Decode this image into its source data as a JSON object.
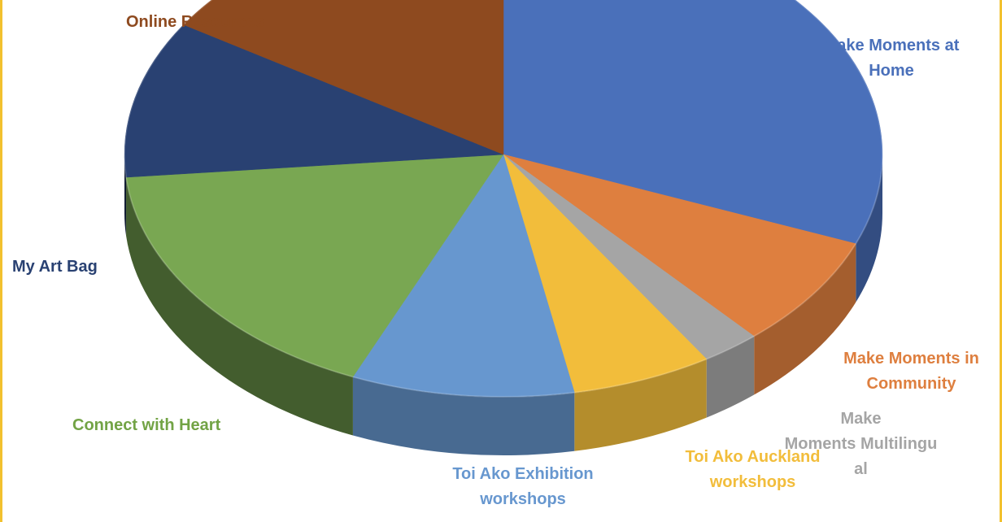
{
  "chart_data": {
    "type": "pie",
    "variant": "3d",
    "title": "",
    "slices": [
      {
        "label": "Make Moments at\nHome",
        "value": 31.0,
        "color": "#4a70ba",
        "label_color": "#4a70ba"
      },
      {
        "label": "Make Moments in\nCommunity",
        "value": 7.5,
        "color": "#de7f3f",
        "label_color": "#de7f3f"
      },
      {
        "label": "Make\nMoments Multilingu\nal",
        "value": 2.5,
        "color": "#a5a5a5",
        "label_color": "#a5a5a5"
      },
      {
        "label": "Toi Ako Auckland\nworkshops",
        "value": 6.0,
        "color": "#f2bd3b",
        "label_color": "#f2bd3b"
      },
      {
        "label": "Toi Ako Exhibition\nworkshops",
        "value": 9.5,
        "color": "#6797cf",
        "label_color": "#6797cf"
      },
      {
        "label": "Connect with Heart",
        "value": 17.0,
        "color": "#79a752",
        "label_color": "#72a345"
      },
      {
        "label": "My Art Bag",
        "value": 10.5,
        "color": "#294172",
        "label_color": "#294172"
      },
      {
        "label": "Online Resources",
        "value": 16.0,
        "color": "#8e4a1f",
        "label_color": "#8e4a1f"
      }
    ]
  }
}
